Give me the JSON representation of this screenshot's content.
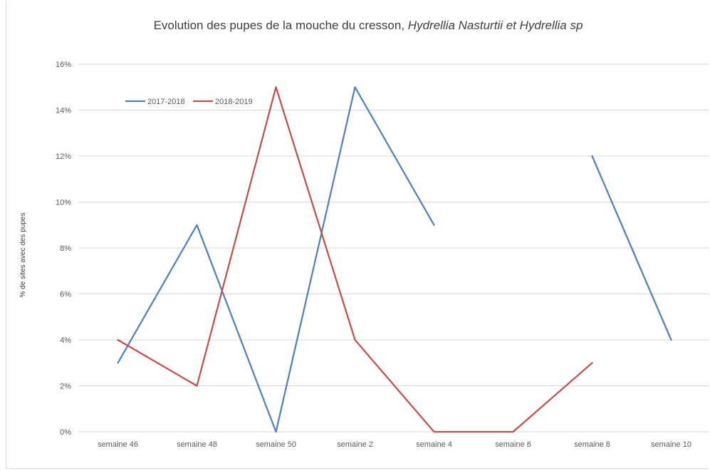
{
  "chart_data": {
    "type": "line",
    "title": "Evolution des pupes de la mouche du cresson, ",
    "title_italic": "Hydrellia Nasturtii et Hydrellia sp",
    "ylabel": "% de sites avec des pupes",
    "xlabel": "",
    "categories": [
      "semaine 46",
      "semaine 48",
      "semaine 50",
      "semaine 2",
      "semaine 4",
      "semaine 6",
      "semaine 8",
      "semaine 10"
    ],
    "ylim": [
      0,
      16
    ],
    "yticks": [
      0,
      2,
      4,
      6,
      8,
      10,
      12,
      14,
      16
    ],
    "ytick_labels": [
      "0%",
      "2%",
      "4%",
      "6%",
      "8%",
      "10%",
      "12%",
      "14%",
      "16%"
    ],
    "grid": true,
    "legend_position": "top-left",
    "series": [
      {
        "name": "2017-2018",
        "color": "#4f81bd",
        "values": [
          3,
          9,
          0,
          15,
          9,
          null,
          12,
          4
        ]
      },
      {
        "name": "2018-2019",
        "color": "#c0504d",
        "values": [
          4,
          2,
          15,
          4,
          0,
          0,
          3,
          null
        ]
      }
    ]
  }
}
